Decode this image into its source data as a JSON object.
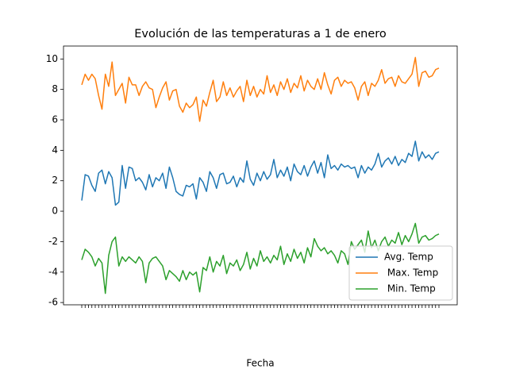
{
  "chart_data": {
    "type": "line",
    "title": "Evolución de las temperaturas a 1 de enero",
    "x_label": "Fecha",
    "categories": [
      null,
      null,
      null,
      null,
      null,
      null,
      null,
      null,
      null,
      null,
      null,
      null,
      null,
      null,
      null,
      null,
      null,
      null,
      null,
      null,
      null,
      null,
      null,
      null,
      null,
      null,
      null,
      null,
      null,
      null,
      null,
      null,
      null,
      null,
      null,
      null,
      null,
      null,
      null,
      null,
      null,
      null,
      null,
      null,
      null,
      null,
      null,
      null,
      null,
      null,
      null,
      null,
      null,
      null,
      null,
      null,
      null,
      null,
      null,
      null,
      null,
      null,
      null,
      null,
      null,
      null,
      null,
      null,
      null,
      null,
      null,
      null,
      null,
      null,
      null,
      null,
      null,
      null,
      null,
      null,
      null,
      null,
      null,
      null,
      null,
      null,
      null,
      null,
      null,
      null,
      null,
      null,
      null,
      null,
      null,
      null,
      null,
      null,
      null,
      null,
      null,
      null,
      null,
      null,
      null,
      null,
      null
    ],
    "series": [
      {
        "name": "Avg. Temp",
        "color": "#1f77b4",
        "values": [
          0.7,
          2.4,
          2.3,
          1.7,
          1.3,
          2.5,
          2.7,
          1.8,
          2.6,
          2.2,
          0.4,
          0.6,
          3.0,
          1.5,
          2.9,
          2.8,
          2.0,
          2.2,
          1.9,
          1.4,
          2.4,
          1.6,
          2.2,
          2.0,
          2.5,
          1.5,
          2.9,
          2.2,
          1.3,
          1.1,
          1.0,
          1.7,
          1.6,
          1.8,
          0.8,
          2.2,
          1.9,
          1.3,
          2.6,
          2.2,
          1.5,
          2.4,
          2.5,
          1.8,
          1.9,
          2.3,
          1.6,
          2.2,
          1.9,
          3.3,
          2.1,
          1.7,
          2.5,
          2.0,
          2.6,
          2.1,
          2.4,
          3.4,
          2.2,
          2.7,
          2.3,
          2.9,
          2.0,
          3.1,
          2.6,
          2.4,
          3.0,
          2.3,
          2.9,
          3.3,
          2.5,
          3.2,
          2.2,
          3.7,
          2.8,
          3.0,
          2.7,
          3.1,
          2.9,
          3.0,
          2.8,
          2.9,
          2.2,
          3.0,
          2.5,
          2.9,
          2.7,
          3.1,
          3.8,
          2.9,
          3.3,
          3.5,
          3.1,
          3.6,
          3.0,
          3.4,
          3.2,
          3.8,
          3.6,
          4.6,
          3.3,
          3.9,
          3.5,
          3.7,
          3.4,
          3.8,
          3.9
        ]
      },
      {
        "name": " Max. Temp",
        "color": "#ff7f0e",
        "values": [
          8.3,
          9.0,
          8.6,
          9.0,
          8.7,
          7.6,
          6.7,
          9.0,
          8.2,
          9.8,
          7.6,
          8.0,
          8.4,
          7.1,
          8.8,
          8.3,
          8.3,
          7.6,
          8.2,
          8.5,
          8.1,
          8.0,
          6.8,
          7.5,
          8.1,
          8.5,
          7.3,
          7.9,
          8.0,
          6.9,
          6.5,
          7.1,
          6.8,
          7.0,
          7.5,
          5.9,
          7.3,
          6.9,
          7.8,
          8.6,
          7.2,
          7.5,
          8.5,
          7.6,
          8.1,
          7.5,
          7.9,
          8.2,
          7.2,
          8.6,
          7.6,
          8.2,
          7.5,
          8.0,
          7.7,
          8.9,
          7.8,
          8.3,
          7.6,
          8.5,
          8.0,
          8.7,
          7.8,
          8.4,
          8.1,
          8.9,
          7.9,
          8.6,
          8.2,
          8.0,
          8.7,
          8.0,
          9.1,
          8.3,
          7.7,
          8.6,
          8.8,
          8.2,
          8.6,
          8.4,
          8.5,
          8.1,
          7.3,
          8.2,
          8.5,
          7.6,
          8.4,
          8.2,
          8.6,
          9.3,
          8.4,
          8.7,
          8.8,
          8.2,
          8.9,
          8.5,
          8.4,
          8.7,
          9.0,
          10.1,
          8.2,
          9.1,
          9.2,
          8.8,
          8.9,
          9.3,
          9.4
        ]
      },
      {
        "name": " Min. Temp",
        "color": "#2ca02c",
        "values": [
          -3.2,
          -2.5,
          -2.7,
          -3.0,
          -3.6,
          -3.1,
          -3.4,
          -5.4,
          -2.9,
          -2.0,
          -1.7,
          -3.6,
          -3.0,
          -3.3,
          -3.0,
          -3.2,
          -3.4,
          -3.0,
          -3.3,
          -4.7,
          -3.4,
          -3.1,
          -3.0,
          -3.3,
          -3.6,
          -4.5,
          -3.9,
          -4.1,
          -4.3,
          -4.6,
          -3.9,
          -4.5,
          -4.0,
          -4.2,
          -4.0,
          -5.3,
          -3.7,
          -3.9,
          -3.0,
          -4.0,
          -3.3,
          -3.6,
          -2.9,
          -4.1,
          -3.4,
          -3.6,
          -3.2,
          -3.9,
          -3.5,
          -2.7,
          -3.8,
          -3.1,
          -3.6,
          -2.6,
          -3.3,
          -3.0,
          -3.4,
          -2.9,
          -3.2,
          -2.3,
          -3.5,
          -2.8,
          -3.3,
          -2.5,
          -3.1,
          -2.7,
          -3.4,
          -2.4,
          -3.0,
          -1.8,
          -2.3,
          -2.6,
          -2.4,
          -2.8,
          -2.6,
          -2.9,
          -3.4,
          -2.6,
          -2.8,
          -3.5,
          -2.0,
          -2.5,
          -2.2,
          -1.9,
          -2.7,
          -1.3,
          -2.4,
          -1.9,
          -2.6,
          -2.0,
          -1.7,
          -2.3,
          -1.9,
          -2.1,
          -1.4,
          -2.2,
          -1.6,
          -2.0,
          -1.5,
          -0.8,
          -2.1,
          -1.7,
          -1.6,
          -1.9,
          -1.8,
          -1.6,
          -1.5
        ]
      }
    ],
    "ylim": [
      -6.15,
      10.85
    ],
    "yticks": [
      -6,
      -4,
      -2,
      0,
      2,
      4,
      6,
      8,
      10
    ],
    "legend": "lower right"
  }
}
